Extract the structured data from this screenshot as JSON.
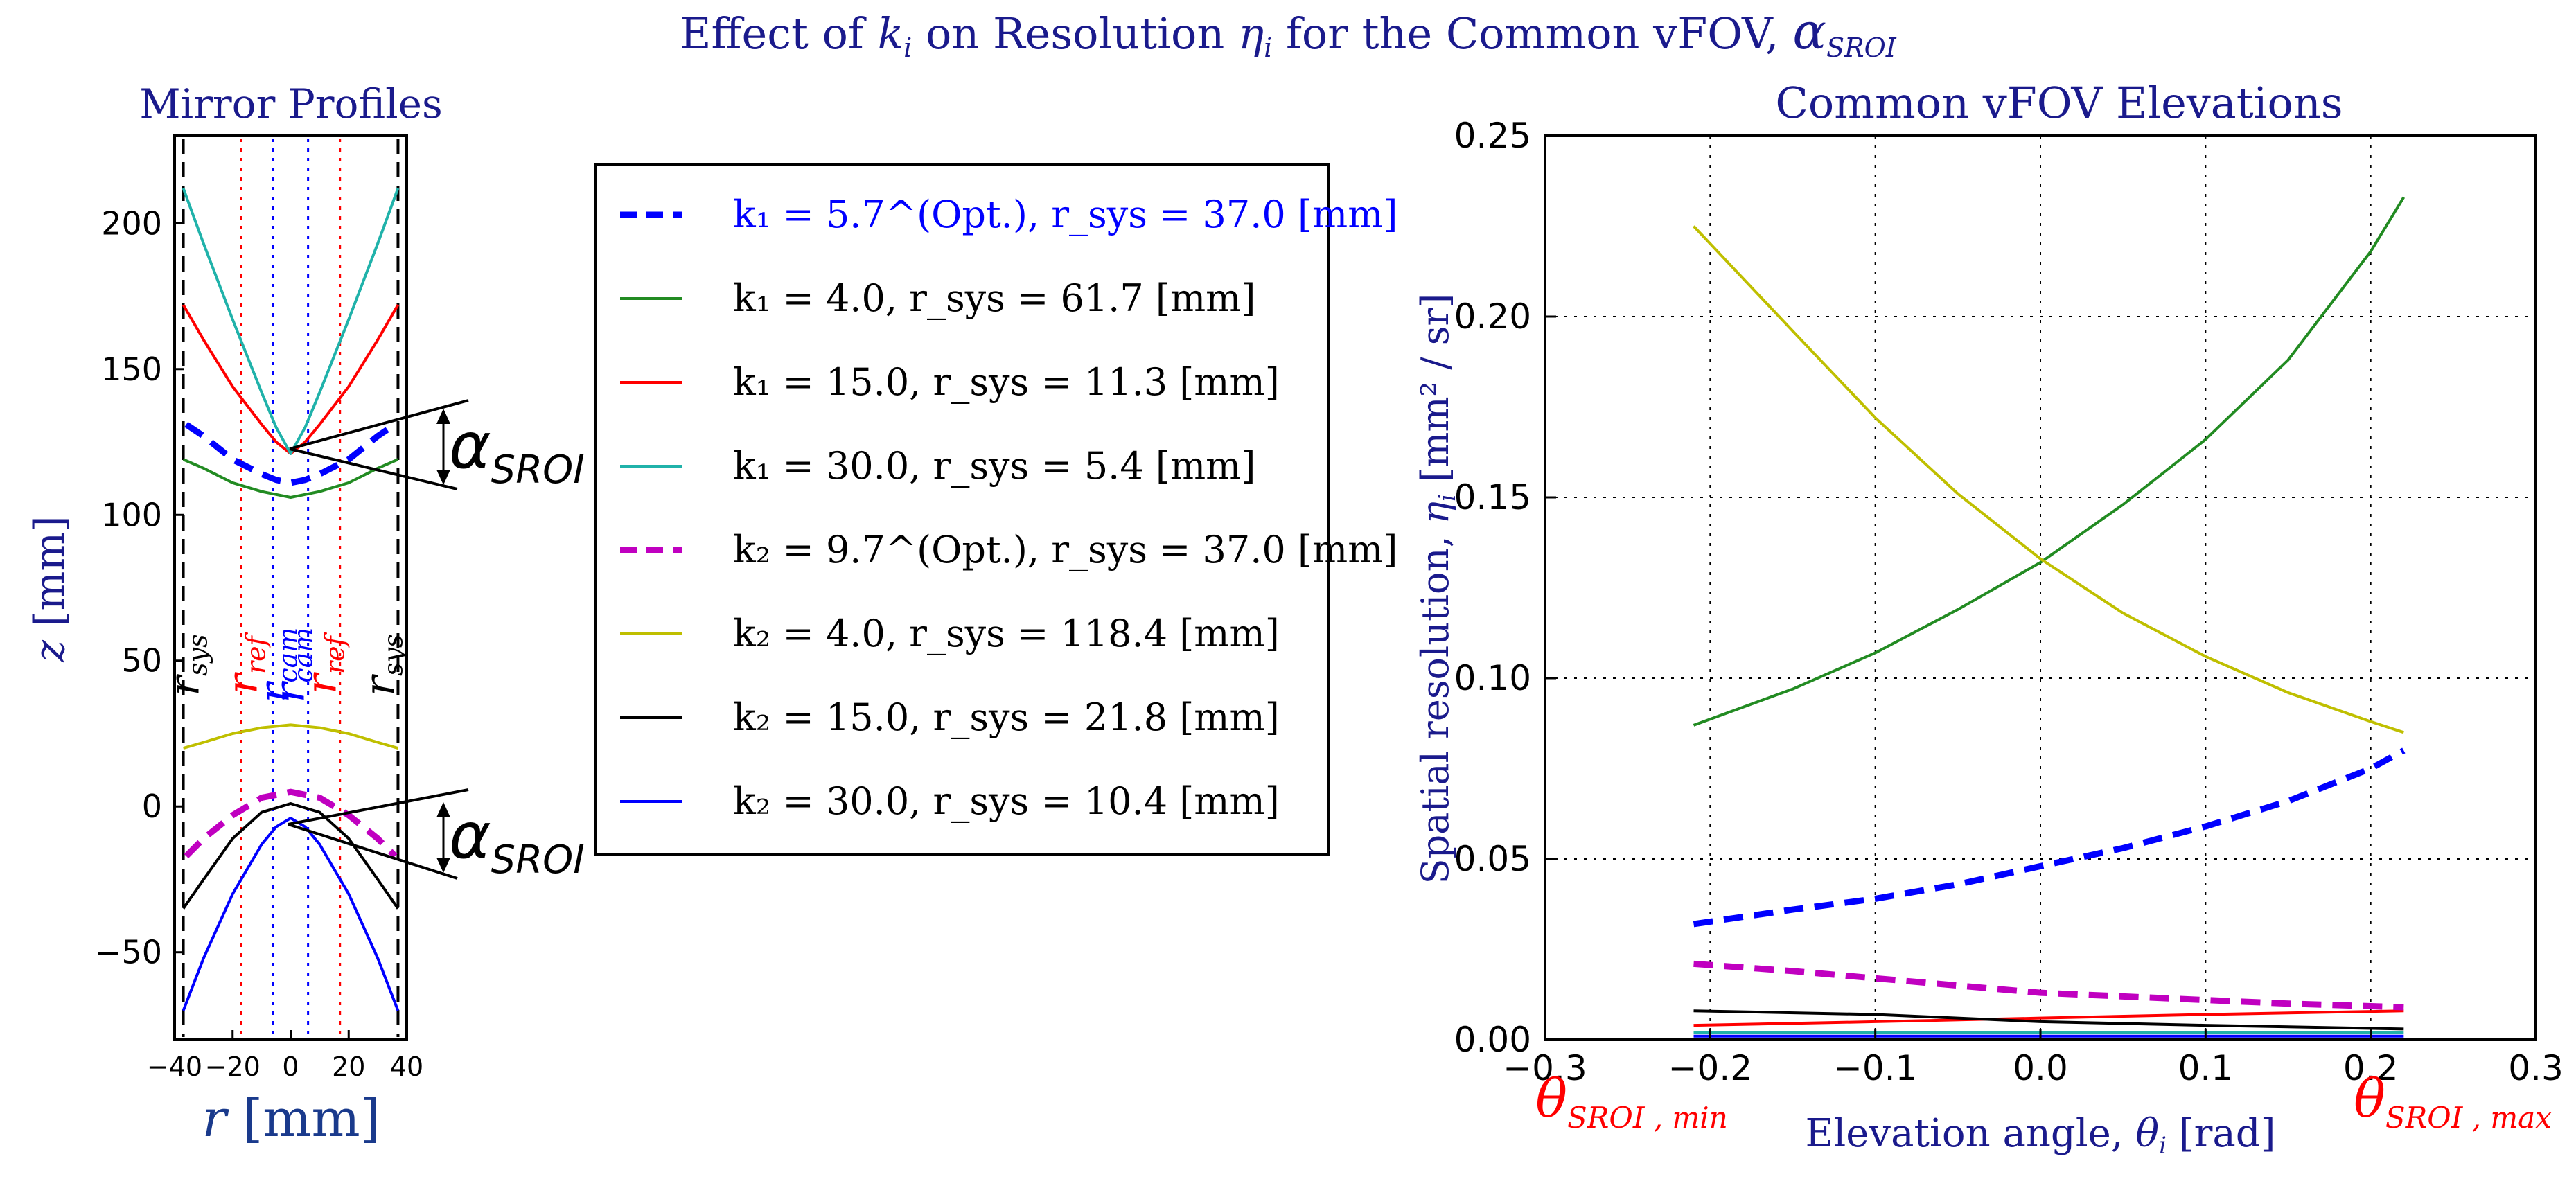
{
  "figure": {
    "suptitle": "Effect of k_i on Resolution η_i for the Common vFOV, α_SROI",
    "colors": {
      "title": "#1a1a8c",
      "opt1": "#0000ff",
      "green": "#228b22",
      "red": "#ff0000",
      "cyan": "#20b2aa",
      "opt2": "#c000c0",
      "yellow": "#bfbf00",
      "black": "#000000",
      "blue": "#0000ff",
      "theta_label": "#ff0000"
    }
  },
  "left_text": {
    "title": "Mirror Profiles",
    "ylabel": "z [mm]",
    "xlabel": "r [mm]",
    "vlines": [
      {
        "label": "r_sys",
        "color": "#000000",
        "style": "dashed"
      },
      {
        "label": "r_ref",
        "color": "#ff0000",
        "style": "dotted"
      },
      {
        "label": "r_cam",
        "color": "#0000ff",
        "style": "dotted"
      },
      {
        "label": "r_cam",
        "color": "#0000ff",
        "style": "dotted"
      },
      {
        "label": "r_ref",
        "color": "#ff0000",
        "style": "dotted"
      },
      {
        "label": "r_sys",
        "color": "#000000",
        "style": "dashed"
      }
    ],
    "alpha_label": "α_SROI"
  },
  "legend": [
    {
      "text": "k₁ = 5.7^(Opt.),  r_sys = 37.0 [mm]",
      "color": "#0000ff",
      "style": "dashed",
      "text_color": "#0000ff"
    },
    {
      "text": "k₁ = 4.0,  r_sys = 61.7 [mm]",
      "color": "#228b22",
      "style": "solid"
    },
    {
      "text": "k₁ = 15.0,  r_sys = 11.3 [mm]",
      "color": "#ff0000",
      "style": "solid"
    },
    {
      "text": "k₁ = 30.0,  r_sys = 5.4 [mm]",
      "color": "#20b2aa",
      "style": "solid"
    },
    {
      "text": "k₂ = 9.7^(Opt.),  r_sys = 37.0 [mm]",
      "color": "#c000c0",
      "style": "dashed"
    },
    {
      "text": "k₂ = 4.0,  r_sys = 118.4 [mm]",
      "color": "#bfbf00",
      "style": "solid"
    },
    {
      "text": "k₂ = 15.0,  r_sys = 21.8 [mm]",
      "color": "#000000",
      "style": "solid"
    },
    {
      "text": "k₂ = 30.0,  r_sys = 10.4 [mm]",
      "color": "#0000ff",
      "style": "solid"
    }
  ],
  "right_text": {
    "theta_min_label": "θ_SROI, min",
    "theta_max_label": "θ_SROI, max"
  },
  "chart_data": [
    {
      "type": "line",
      "title": "Mirror Profiles",
      "xlabel": "r [mm]",
      "ylabel": "z [mm]",
      "xlim": [
        -40,
        40
      ],
      "ylim": [
        -80,
        230
      ],
      "xticks": [
        -40,
        -20,
        0,
        20,
        40
      ],
      "yticks": [
        -50,
        0,
        50,
        100,
        150,
        200
      ],
      "grid": false,
      "series": [
        {
          "name": "k1=5.7 (Opt.)",
          "style": "dashed",
          "color": "#0000ff",
          "x": [
            -36,
            -30,
            -20,
            -10,
            -5,
            0,
            5,
            10,
            20,
            30,
            36
          ],
          "y": [
            131,
            127,
            119,
            114,
            112,
            111,
            112,
            114,
            119,
            127,
            131
          ]
        },
        {
          "name": "k1=4.0",
          "style": "solid",
          "color": "#228b22",
          "x": [
            -37,
            -30,
            -20,
            -10,
            0,
            10,
            20,
            30,
            37
          ],
          "y": [
            119,
            116,
            111,
            108,
            106,
            108,
            111,
            116,
            119
          ]
        },
        {
          "name": "k1=15.0",
          "style": "solid",
          "color": "#ff0000",
          "x": [
            -37,
            -30,
            -20,
            -10,
            -5,
            0,
            5,
            10,
            20,
            30,
            37
          ],
          "y": [
            172,
            160,
            144,
            131,
            125,
            121,
            125,
            131,
            144,
            160,
            172
          ]
        },
        {
          "name": "k1=30.0",
          "style": "solid",
          "color": "#20b2aa",
          "x": [
            -37,
            -30,
            -20,
            -10,
            -5,
            0,
            5,
            10,
            20,
            30,
            37
          ],
          "y": [
            212,
            193,
            167,
            142,
            130,
            121,
            130,
            142,
            167,
            193,
            212
          ]
        },
        {
          "name": "k2=9.7 (Opt.)",
          "style": "dashed",
          "color": "#c000c0",
          "x": [
            -36,
            -30,
            -20,
            -10,
            0,
            10,
            20,
            30,
            36
          ],
          "y": [
            -17,
            -11,
            -3,
            3,
            5,
            3,
            -3,
            -11,
            -17
          ]
        },
        {
          "name": "k2=4.0",
          "style": "solid",
          "color": "#bfbf00",
          "x": [
            -37,
            -30,
            -20,
            -10,
            0,
            10,
            20,
            30,
            37
          ],
          "y": [
            20,
            22,
            25,
            27,
            28,
            27,
            25,
            22,
            20
          ]
        },
        {
          "name": "k2=15.0",
          "style": "solid",
          "color": "#000000",
          "x": [
            -37,
            -30,
            -20,
            -10,
            0,
            10,
            20,
            30,
            37
          ],
          "y": [
            -35,
            -25,
            -11,
            -2,
            1,
            -2,
            -11,
            -25,
            -35
          ]
        },
        {
          "name": "k2=30.0",
          "style": "solid",
          "color": "#0000ff",
          "x": [
            -37,
            -30,
            -20,
            -10,
            -5,
            0,
            5,
            10,
            20,
            30,
            37
          ],
          "y": [
            -70,
            -52,
            -30,
            -13,
            -7,
            -4,
            -7,
            -13,
            -30,
            -52,
            -70
          ]
        }
      ],
      "vlines_x": [
        -37,
        -17,
        -6,
        6,
        17,
        37
      ]
    },
    {
      "type": "line",
      "title": "Common vFOV Elevations",
      "xlabel": "Elevation angle, θ_i [rad]",
      "ylabel": "Spatial resolution, η_i [mm²/sr]",
      "xlim": [
        -0.3,
        0.3
      ],
      "ylim": [
        0.0,
        0.25
      ],
      "xticks": [
        "−0.3",
        "−0.2",
        "−0.1",
        "0.0",
        "0.1",
        "0.2",
        "0.3"
      ],
      "yticks": [
        "0.00",
        "0.05",
        "0.10",
        "0.15",
        "0.20",
        "0.25"
      ],
      "grid": true,
      "series": [
        {
          "name": "k1=5.7 (Opt.)",
          "style": "dashed",
          "color": "#0000ff",
          "x": [
            -0.21,
            -0.15,
            -0.1,
            -0.05,
            0.0,
            0.05,
            0.1,
            0.15,
            0.2,
            0.22
          ],
          "y": [
            0.032,
            0.036,
            0.039,
            0.043,
            0.048,
            0.053,
            0.059,
            0.066,
            0.075,
            0.08
          ]
        },
        {
          "name": "k1=4.0",
          "style": "solid",
          "color": "#228b22",
          "x": [
            -0.21,
            -0.15,
            -0.1,
            -0.05,
            0.0,
            0.05,
            0.1,
            0.15,
            0.2,
            0.22
          ],
          "y": [
            0.087,
            0.097,
            0.107,
            0.119,
            0.132,
            0.148,
            0.166,
            0.188,
            0.218,
            0.233
          ]
        },
        {
          "name": "k1=15.0",
          "style": "solid",
          "color": "#ff0000",
          "x": [
            -0.21,
            -0.1,
            0.0,
            0.1,
            0.22
          ],
          "y": [
            0.004,
            0.005,
            0.006,
            0.007,
            0.008
          ]
        },
        {
          "name": "k1=30.0",
          "style": "solid",
          "color": "#20b2aa",
          "x": [
            -0.21,
            -0.1,
            0.0,
            0.1,
            0.22
          ],
          "y": [
            0.002,
            0.002,
            0.002,
            0.002,
            0.002
          ]
        },
        {
          "name": "k2=9.7 (Opt.)",
          "style": "dashed",
          "color": "#c000c0",
          "x": [
            -0.21,
            -0.15,
            -0.1,
            -0.05,
            0.0,
            0.05,
            0.1,
            0.15,
            0.22
          ],
          "y": [
            0.021,
            0.019,
            0.017,
            0.015,
            0.013,
            0.012,
            0.011,
            0.01,
            0.009
          ]
        },
        {
          "name": "k2=4.0",
          "style": "solid",
          "color": "#bfbf00",
          "x": [
            -0.21,
            -0.15,
            -0.1,
            -0.05,
            0.0,
            0.05,
            0.1,
            0.15,
            0.2,
            0.22
          ],
          "y": [
            0.225,
            0.196,
            0.172,
            0.151,
            0.133,
            0.118,
            0.106,
            0.096,
            0.088,
            0.085
          ]
        },
        {
          "name": "k2=15.0",
          "style": "solid",
          "color": "#000000",
          "x": [
            -0.21,
            -0.1,
            0.0,
            0.1,
            0.22
          ],
          "y": [
            0.008,
            0.007,
            0.005,
            0.004,
            0.003
          ]
        },
        {
          "name": "k2=30.0",
          "style": "solid",
          "color": "#0000ff",
          "x": [
            -0.21,
            -0.1,
            0.0,
            0.1,
            0.22
          ],
          "y": [
            0.001,
            0.001,
            0.001,
            0.001,
            0.001
          ]
        }
      ]
    }
  ]
}
